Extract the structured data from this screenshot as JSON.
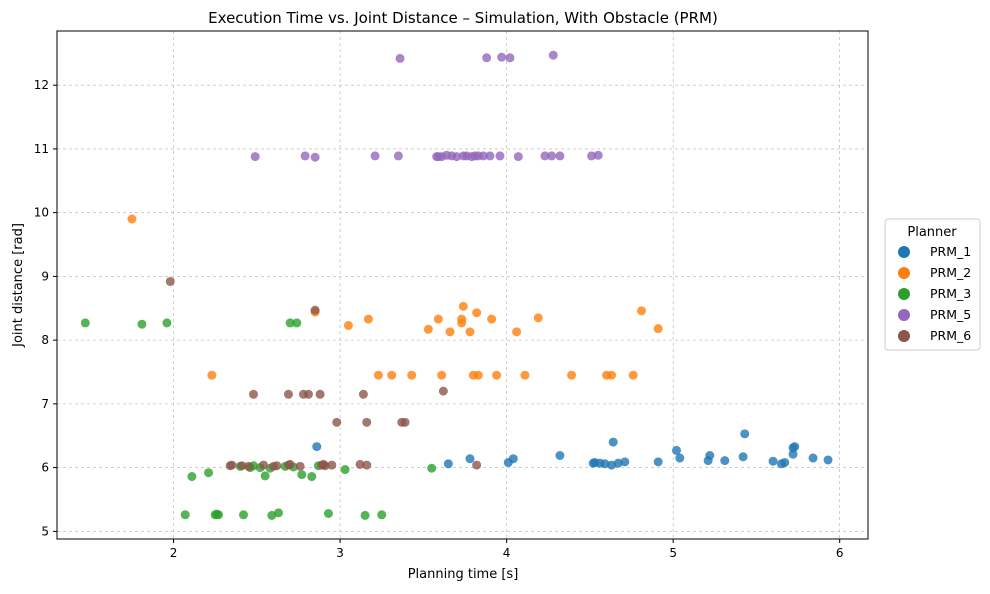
{
  "chart_data": {
    "type": "scatter",
    "title": "Execution Time vs. Joint Distance – Simulation, With Obstacle (PRM)",
    "xlabel": "Planning time [s]",
    "ylabel": "Joint distance [rad]",
    "xlim": [
      1.3,
      6.17
    ],
    "ylim": [
      4.88,
      12.85
    ],
    "xticks": [
      2,
      3,
      4,
      5,
      6
    ],
    "yticks": [
      5,
      6,
      7,
      8,
      9,
      10,
      11,
      12
    ],
    "grid": true,
    "legend": {
      "title": "Planner",
      "placement": "center-right-outside"
    },
    "series": [
      {
        "name": "PRM_1",
        "color": "#1f77b4",
        "points": [
          [
            2.86,
            6.33
          ],
          [
            3.65,
            6.06
          ],
          [
            3.78,
            6.14
          ],
          [
            4.01,
            6.08
          ],
          [
            4.04,
            6.14
          ],
          [
            4.32,
            6.19
          ],
          [
            4.52,
            6.07
          ],
          [
            4.53,
            6.08
          ],
          [
            4.56,
            6.07
          ],
          [
            4.59,
            6.06
          ],
          [
            4.63,
            6.04
          ],
          [
            4.64,
            6.4
          ],
          [
            4.67,
            6.07
          ],
          [
            4.71,
            6.09
          ],
          [
            4.91,
            6.09
          ],
          [
            5.02,
            6.27
          ],
          [
            5.04,
            6.15
          ],
          [
            5.21,
            6.11
          ],
          [
            5.22,
            6.19
          ],
          [
            5.31,
            6.11
          ],
          [
            5.42,
            6.17
          ],
          [
            5.43,
            6.53
          ],
          [
            5.6,
            6.1
          ],
          [
            5.65,
            6.06
          ],
          [
            5.67,
            6.08
          ],
          [
            5.72,
            6.31
          ],
          [
            5.73,
            6.33
          ],
          [
            5.72,
            6.21
          ],
          [
            5.84,
            6.15
          ],
          [
            5.93,
            6.12
          ]
        ]
      },
      {
        "name": "PRM_2",
        "color": "#ff7f0e",
        "points": [
          [
            1.75,
            9.9
          ],
          [
            2.23,
            7.45
          ],
          [
            2.85,
            8.44
          ],
          [
            3.05,
            8.23
          ],
          [
            3.17,
            8.33
          ],
          [
            3.23,
            7.45
          ],
          [
            3.31,
            7.45
          ],
          [
            3.43,
            7.45
          ],
          [
            3.53,
            8.17
          ],
          [
            3.59,
            8.33
          ],
          [
            3.61,
            7.45
          ],
          [
            3.66,
            8.13
          ],
          [
            3.73,
            8.27
          ],
          [
            3.73,
            8.33
          ],
          [
            3.74,
            8.53
          ],
          [
            3.78,
            8.13
          ],
          [
            3.8,
            7.45
          ],
          [
            3.82,
            8.43
          ],
          [
            3.83,
            7.45
          ],
          [
            3.91,
            8.33
          ],
          [
            3.94,
            7.45
          ],
          [
            4.06,
            8.13
          ],
          [
            4.11,
            7.45
          ],
          [
            4.19,
            8.35
          ],
          [
            4.39,
            7.45
          ],
          [
            4.6,
            7.45
          ],
          [
            4.63,
            7.45
          ],
          [
            4.76,
            7.45
          ],
          [
            4.81,
            8.46
          ],
          [
            4.91,
            8.18
          ]
        ]
      },
      {
        "name": "PRM_3",
        "color": "#2ca02c",
        "points": [
          [
            1.47,
            8.27
          ],
          [
            1.81,
            8.25
          ],
          [
            1.96,
            8.27
          ],
          [
            2.07,
            5.26
          ],
          [
            2.11,
            5.86
          ],
          [
            2.21,
            5.92
          ],
          [
            2.25,
            5.26
          ],
          [
            2.26,
            5.27
          ],
          [
            2.27,
            5.26
          ],
          [
            2.42,
            5.26
          ],
          [
            2.46,
            6.0
          ],
          [
            2.48,
            6.03
          ],
          [
            2.55,
            5.87
          ],
          [
            2.58,
            5.99
          ],
          [
            2.59,
            5.25
          ],
          [
            2.63,
            5.29
          ],
          [
            2.67,
            6.02
          ],
          [
            2.7,
            8.27
          ],
          [
            2.74,
            8.27
          ],
          [
            2.77,
            5.89
          ],
          [
            2.83,
            5.86
          ],
          [
            2.87,
            6.03
          ],
          [
            2.93,
            5.28
          ],
          [
            3.03,
            5.97
          ],
          [
            3.15,
            5.25
          ],
          [
            3.25,
            5.26
          ],
          [
            3.55,
            5.99
          ],
          [
            2.4,
            6.02
          ],
          [
            2.52,
            6.0
          ],
          [
            2.72,
            6.01
          ]
        ]
      },
      {
        "name": "PRM_5",
        "color": "#9467bd",
        "points": [
          [
            2.49,
            10.88
          ],
          [
            2.79,
            10.89
          ],
          [
            2.85,
            10.87
          ],
          [
            3.21,
            10.89
          ],
          [
            3.35,
            10.89
          ],
          [
            3.36,
            12.42
          ],
          [
            3.58,
            10.88
          ],
          [
            3.59,
            10.88
          ],
          [
            3.64,
            10.9
          ],
          [
            3.67,
            10.89
          ],
          [
            3.7,
            10.88
          ],
          [
            3.74,
            10.89
          ],
          [
            3.76,
            10.89
          ],
          [
            3.81,
            10.89
          ],
          [
            3.83,
            10.89
          ],
          [
            3.86,
            10.89
          ],
          [
            3.88,
            12.43
          ],
          [
            3.9,
            10.89
          ],
          [
            3.96,
            10.89
          ],
          [
            3.97,
            12.44
          ],
          [
            4.02,
            12.43
          ],
          [
            4.07,
            10.88
          ],
          [
            4.23,
            10.89
          ],
          [
            4.27,
            10.89
          ],
          [
            4.28,
            12.47
          ],
          [
            4.32,
            10.89
          ],
          [
            4.51,
            10.89
          ],
          [
            4.55,
            10.9
          ],
          [
            3.61,
            10.88
          ],
          [
            3.79,
            10.88
          ]
        ]
      },
      {
        "name": "PRM_6",
        "color": "#8c564b",
        "points": [
          [
            1.98,
            8.92
          ],
          [
            2.34,
            6.03
          ],
          [
            2.41,
            6.03
          ],
          [
            2.45,
            6.02
          ],
          [
            2.48,
            7.15
          ],
          [
            2.54,
            6.04
          ],
          [
            2.62,
            6.03
          ],
          [
            2.69,
            6.04
          ],
          [
            2.69,
            7.15
          ],
          [
            2.76,
            6.02
          ],
          [
            2.78,
            7.15
          ],
          [
            2.81,
            7.15
          ],
          [
            2.85,
            8.47
          ],
          [
            2.88,
            7.15
          ],
          [
            2.9,
            6.05
          ],
          [
            2.91,
            6.03
          ],
          [
            2.95,
            6.04
          ],
          [
            2.98,
            6.71
          ],
          [
            3.12,
            6.05
          ],
          [
            3.14,
            7.15
          ],
          [
            3.16,
            6.71
          ],
          [
            3.16,
            6.04
          ],
          [
            3.37,
            6.71
          ],
          [
            3.39,
            6.71
          ],
          [
            3.62,
            7.2
          ],
          [
            3.82,
            6.04
          ],
          [
            2.7,
            6.05
          ],
          [
            2.89,
            6.04
          ],
          [
            2.6,
            6.02
          ],
          [
            2.35,
            6.04
          ]
        ]
      }
    ]
  }
}
